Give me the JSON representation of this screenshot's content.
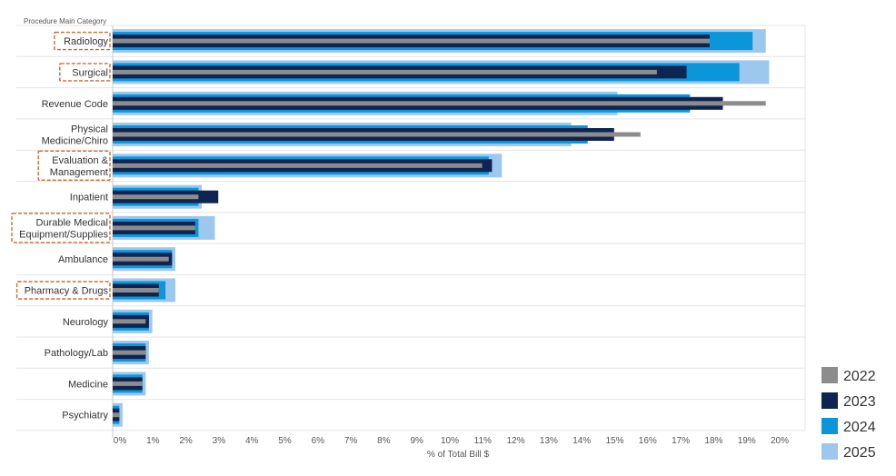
{
  "chart_data": {
    "type": "bar",
    "orientation": "horizontal",
    "row_header": "Procedure Main Category",
    "xlabel": "% of Total Bill $",
    "xlim": [
      0,
      20
    ],
    "x_ticks": [
      "0%",
      "1%",
      "2%",
      "3%",
      "4%",
      "5%",
      "6%",
      "7%",
      "8%",
      "9%",
      "10%",
      "11%",
      "12%",
      "13%",
      "14%",
      "15%",
      "16%",
      "17%",
      "18%",
      "19%",
      "20%"
    ],
    "grid": true,
    "legend_position": "bottom-right",
    "categories": [
      {
        "lines": [
          "Radiology"
        ],
        "highlighted": true
      },
      {
        "lines": [
          "Surgical"
        ],
        "highlighted": true
      },
      {
        "lines": [
          "Revenue Code"
        ],
        "highlighted": false
      },
      {
        "lines": [
          "Physical",
          "Medicine/Chiro"
        ],
        "highlighted": false
      },
      {
        "lines": [
          "Evaluation &",
          "Management"
        ],
        "highlighted": true
      },
      {
        "lines": [
          "Inpatient"
        ],
        "highlighted": false
      },
      {
        "lines": [
          "Durable Medical",
          "Equipment/Supplies"
        ],
        "highlighted": true
      },
      {
        "lines": [
          "Ambulance"
        ],
        "highlighted": false
      },
      {
        "lines": [
          "Pharmacy & Drugs"
        ],
        "highlighted": true
      },
      {
        "lines": [
          "Neurology"
        ],
        "highlighted": false
      },
      {
        "lines": [
          "Pathology/Lab"
        ],
        "highlighted": false
      },
      {
        "lines": [
          "Medicine"
        ],
        "highlighted": false
      },
      {
        "lines": [
          "Psychiatry"
        ],
        "highlighted": false
      }
    ],
    "series": [
      {
        "name": "2025",
        "color": "#9DC8EE",
        "values": [
          19.8,
          19.9,
          15.3,
          13.9,
          11.8,
          2.7,
          3.1,
          1.9,
          1.9,
          1.2,
          1.1,
          1.0,
          0.3
        ]
      },
      {
        "name": "2024",
        "color": "#0C96DA",
        "values": [
          19.4,
          19.0,
          17.5,
          14.4,
          11.4,
          2.6,
          2.6,
          1.8,
          1.6,
          1.1,
          1.0,
          0.9,
          0.2
        ]
      },
      {
        "name": "2023",
        "color": "#0E2451",
        "values": [
          18.1,
          17.4,
          18.5,
          15.2,
          11.5,
          3.2,
          2.5,
          1.8,
          1.4,
          1.1,
          1.0,
          0.9,
          0.2
        ]
      },
      {
        "name": "2022",
        "color": "#8C8C8C",
        "values": [
          18.1,
          16.5,
          19.8,
          16.0,
          11.2,
          2.6,
          2.5,
          1.7,
          1.4,
          1.0,
          1.0,
          0.9,
          0.2
        ]
      }
    ],
    "legend": [
      {
        "name": "2022",
        "color": "#8C8C8C"
      },
      {
        "name": "2023",
        "color": "#0E2451"
      },
      {
        "name": "2024",
        "color": "#0C96DA"
      },
      {
        "name": "2025",
        "color": "#9DC8EE"
      }
    ],
    "highlight_color": "#D06A2A"
  }
}
